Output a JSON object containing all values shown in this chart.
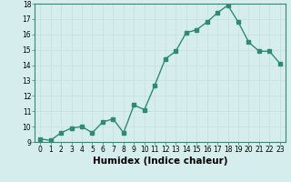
{
  "x": [
    0,
    1,
    2,
    3,
    4,
    5,
    6,
    7,
    8,
    9,
    10,
    11,
    12,
    13,
    14,
    15,
    16,
    17,
    18,
    19,
    20,
    21,
    22,
    23
  ],
  "y": [
    9.2,
    9.1,
    9.6,
    9.9,
    10.0,
    9.6,
    10.3,
    10.5,
    9.6,
    11.4,
    11.1,
    12.7,
    14.4,
    14.9,
    16.1,
    16.3,
    16.8,
    17.4,
    17.9,
    16.8,
    15.5,
    14.9,
    14.9,
    14.1
  ],
  "line_color": "#2e8b72",
  "marker": "s",
  "marker_size": 2.5,
  "bg_color": "#d5eeed",
  "grid_color": "#c8e0de",
  "xlabel": "Humidex (Indice chaleur)",
  "ylim": [
    9,
    18
  ],
  "xlim_min": -0.5,
  "xlim_max": 23.5,
  "yticks": [
    9,
    10,
    11,
    12,
    13,
    14,
    15,
    16,
    17,
    18
  ],
  "xticks": [
    0,
    1,
    2,
    3,
    4,
    5,
    6,
    7,
    8,
    9,
    10,
    11,
    12,
    13,
    14,
    15,
    16,
    17,
    18,
    19,
    20,
    21,
    22,
    23
  ],
  "xtick_labels": [
    "0",
    "1",
    "2",
    "3",
    "4",
    "5",
    "6",
    "7",
    "8",
    "9",
    "10",
    "11",
    "12",
    "13",
    "14",
    "15",
    "16",
    "17",
    "18",
    "19",
    "20",
    "21",
    "22",
    "23"
  ],
  "tick_fontsize": 5.5,
  "xlabel_fontsize": 7.5,
  "line_width": 1.0,
  "spine_color": "#2e8b72"
}
